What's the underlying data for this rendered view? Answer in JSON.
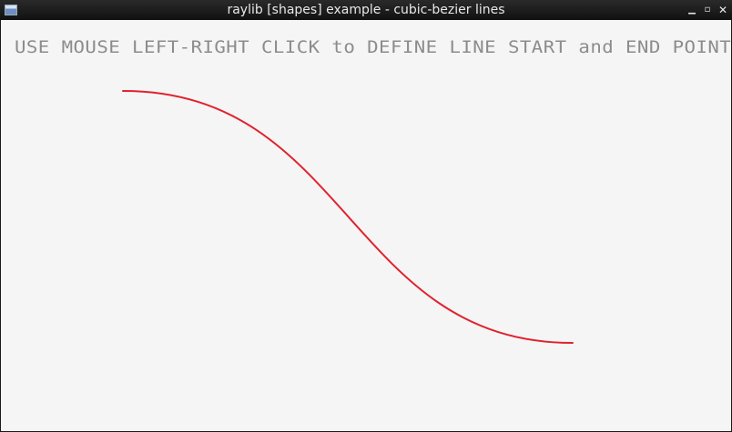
{
  "window": {
    "title": "raylib [shapes] example - cubic-bezier lines",
    "icon": "app-window-icon",
    "controls": {
      "minimize": "▁",
      "maximize": "▫",
      "close": "✕"
    }
  },
  "canvas": {
    "instruction": "USE MOUSE LEFT-RIGHT CLICK to DEFINE LINE START and END POINTS",
    "background_color": "#f5f5f5",
    "text_color": "#8c8c8c"
  },
  "bezier_line": {
    "color": "#e0222e"
  }
}
